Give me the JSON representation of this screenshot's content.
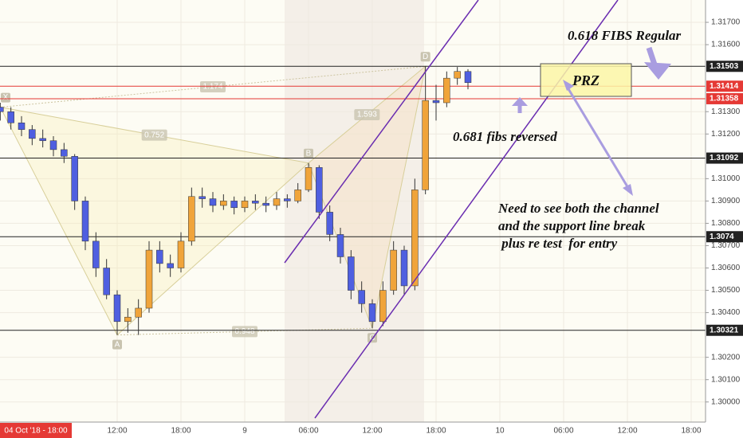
{
  "chart_data": {
    "type": "candlestick",
    "date_label": "04 Oct '18 - 18:00",
    "x": [
      1,
      2,
      3,
      4,
      5,
      6,
      7,
      8,
      9,
      10,
      11,
      12,
      13,
      14,
      15,
      16,
      17,
      18,
      19,
      20,
      21,
      22,
      23,
      24,
      25,
      26,
      27,
      28,
      29,
      30,
      31,
      32,
      33,
      34,
      35,
      36,
      37,
      38,
      39,
      40,
      41,
      42,
      43,
      44,
      45
    ],
    "open": [
      1.3132,
      1.313,
      1.3125,
      1.3122,
      1.3118,
      1.3117,
      1.3113,
      1.311,
      1.309,
      1.3072,
      1.306,
      1.3048,
      1.3036,
      1.3038,
      1.3042,
      1.3068,
      1.3062,
      1.306,
      1.3072,
      1.3092,
      1.3091,
      1.3088,
      1.309,
      1.3087,
      1.309,
      1.3089,
      1.3088,
      1.3091,
      1.309,
      1.3095,
      1.3105,
      1.3085,
      1.3075,
      1.3065,
      1.305,
      1.3044,
      1.3036,
      1.305,
      1.3068,
      1.3052,
      1.3095,
      1.3135,
      1.3134,
      1.3145,
      1.3148
    ],
    "high": [
      1.3134,
      1.3132,
      1.3128,
      1.3124,
      1.3122,
      1.3119,
      1.3116,
      1.3111,
      1.3092,
      1.3076,
      1.3064,
      1.305,
      1.3042,
      1.3046,
      1.3072,
      1.3072,
      1.3066,
      1.3076,
      1.3096,
      1.3096,
      1.3094,
      1.3093,
      1.3092,
      1.3092,
      1.3093,
      1.3092,
      1.3094,
      1.3093,
      1.3098,
      1.3107,
      1.3106,
      1.3088,
      1.3078,
      1.3068,
      1.3054,
      1.3046,
      1.3054,
      1.3072,
      1.307,
      1.31,
      1.31503,
      1.3142,
      1.3148,
      1.315,
      1.3149
    ],
    "low": [
      1.3126,
      1.3122,
      1.3119,
      1.3115,
      1.3114,
      1.311,
      1.3107,
      1.3086,
      1.3068,
      1.3056,
      1.3046,
      1.303,
      1.3031,
      1.303,
      1.304,
      1.3058,
      1.3056,
      1.3058,
      1.307,
      1.3087,
      1.3085,
      1.3086,
      1.3084,
      1.3085,
      1.3086,
      1.3085,
      1.3086,
      1.3087,
      1.3089,
      1.3094,
      1.3082,
      1.3072,
      1.3062,
      1.3046,
      1.304,
      1.3033,
      1.3034,
      1.3048,
      1.3048,
      1.305,
      1.3093,
      1.3126,
      1.3132,
      1.3142,
      1.314
    ],
    "close": [
      1.313,
      1.3125,
      1.3122,
      1.3118,
      1.3117,
      1.3113,
      1.311,
      1.309,
      1.3072,
      1.306,
      1.3048,
      1.3036,
      1.3038,
      1.3042,
      1.3068,
      1.3062,
      1.306,
      1.3072,
      1.3092,
      1.3091,
      1.3088,
      1.309,
      1.3087,
      1.309,
      1.3089,
      1.3088,
      1.3091,
      1.309,
      1.3095,
      1.3105,
      1.3085,
      1.3075,
      1.3065,
      1.305,
      1.3044,
      1.3036,
      1.305,
      1.3068,
      1.3052,
      1.3095,
      1.3135,
      1.3134,
      1.3145,
      1.3148,
      1.3143
    ],
    "up_color": "#f0a43a",
    "down_color": "#4f5fe0",
    "xlim": [
      0.975,
      67.35
    ],
    "ylim": [
      1.2991,
      1.318
    ],
    "grid": true,
    "xticks": [
      {
        "value": 12,
        "label": "12:00"
      },
      {
        "value": 18,
        "label": "18:00"
      },
      {
        "value": 24,
        "label": "9"
      },
      {
        "value": 30,
        "label": "06:00"
      },
      {
        "value": 36,
        "label": "12:00"
      },
      {
        "value": 42,
        "label": "18:00"
      },
      {
        "value": 48,
        "label": "10"
      },
      {
        "value": 54,
        "label": "06:00"
      },
      {
        "value": 60,
        "label": "12:00"
      },
      {
        "value": 66,
        "label": "18:00"
      }
    ],
    "yticks": [
      {
        "value": 1.317,
        "label": "1.31700"
      },
      {
        "value": 1.316,
        "label": "1.31600"
      },
      {
        "value": 1.313,
        "label": "1.31300"
      },
      {
        "value": 1.312,
        "label": "1.31200"
      },
      {
        "value": 1.31,
        "label": "1.31000"
      },
      {
        "value": 1.309,
        "label": "1.30900"
      },
      {
        "value": 1.308,
        "label": "1.30800"
      },
      {
        "value": 1.307,
        "label": "1.30700"
      },
      {
        "value": 1.306,
        "label": "1.30600"
      },
      {
        "value": 1.305,
        "label": "1.30500"
      },
      {
        "value": 1.304,
        "label": "1.30400"
      },
      {
        "value": 1.302,
        "label": "1.30200"
      },
      {
        "value": 1.301,
        "label": "1.30100"
      },
      {
        "value": 1.3,
        "label": "1.30000"
      }
    ],
    "levels": [
      {
        "value": 1.31503,
        "color": "#222222"
      },
      {
        "value": 1.31414,
        "color": "#e53935"
      },
      {
        "value": 1.31358,
        "color": "#e53935"
      },
      {
        "value": 1.31092,
        "color": "#222222"
      },
      {
        "value": 1.3074,
        "color": "#222222"
      },
      {
        "value": 1.30321,
        "color": "#222222"
      }
    ],
    "pattern_points": [
      {
        "label": "X",
        "x": 1,
        "y": 1.3132
      },
      {
        "label": "A",
        "x": 12,
        "y": 1.303
      },
      {
        "label": "B",
        "x": 30,
        "y": 1.3107
      },
      {
        "label": "C",
        "x": 36,
        "y": 1.3033
      },
      {
        "label": "D",
        "x": 41,
        "y": 1.31503
      }
    ],
    "pattern_ratios": [
      1.174,
      0.752,
      0.948,
      1.593
    ],
    "zone_label": "PRZ",
    "annotations": [
      "0.618  FIBS Regular",
      "0.681 fibs reversed",
      "Need to see both the channel",
      "and the support line break",
      " plus re test  for entry"
    ]
  }
}
